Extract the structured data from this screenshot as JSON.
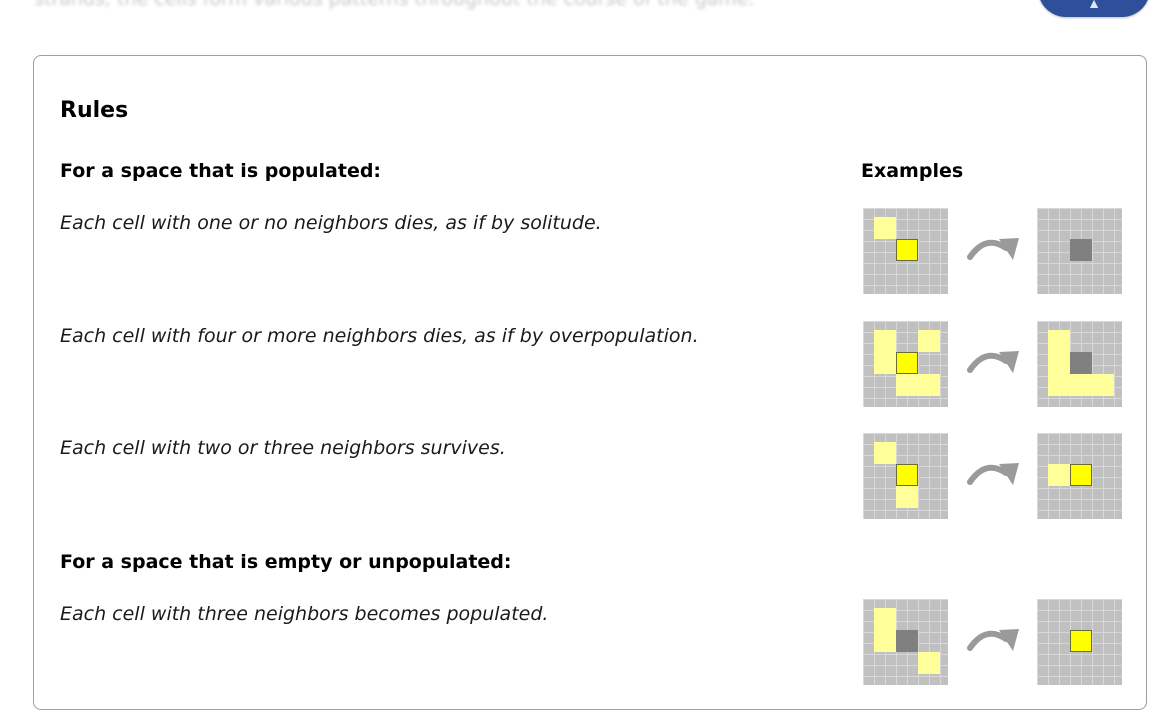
{
  "background_text": "strands, the cells form various patterns throughout the course of the game.",
  "top_button": {
    "icon": "chevron-up-icon",
    "color": "#2e4f9a"
  },
  "rules": {
    "title": "Rules",
    "populated_heading": "For a space that is populated:",
    "empty_heading": "For a space that is empty or unpopulated:",
    "examples_heading": "Examples",
    "items": [
      {
        "text": "Each cell with one or no neighbors dies, as if by solitude."
      },
      {
        "text": "Each cell with four or more neighbors dies, as if by overpopulation."
      },
      {
        "text": "Each cell with two or three neighbors survives."
      },
      {
        "text": "Each cell with three neighbors becomes populated."
      }
    ]
  },
  "colors": {
    "grid_background": "#c0c0c0",
    "neighbor_cell": "#ffff99",
    "focus_cell": "#ffff00",
    "dead_cell": "#808080",
    "arrow": "#9a9a9a"
  }
}
